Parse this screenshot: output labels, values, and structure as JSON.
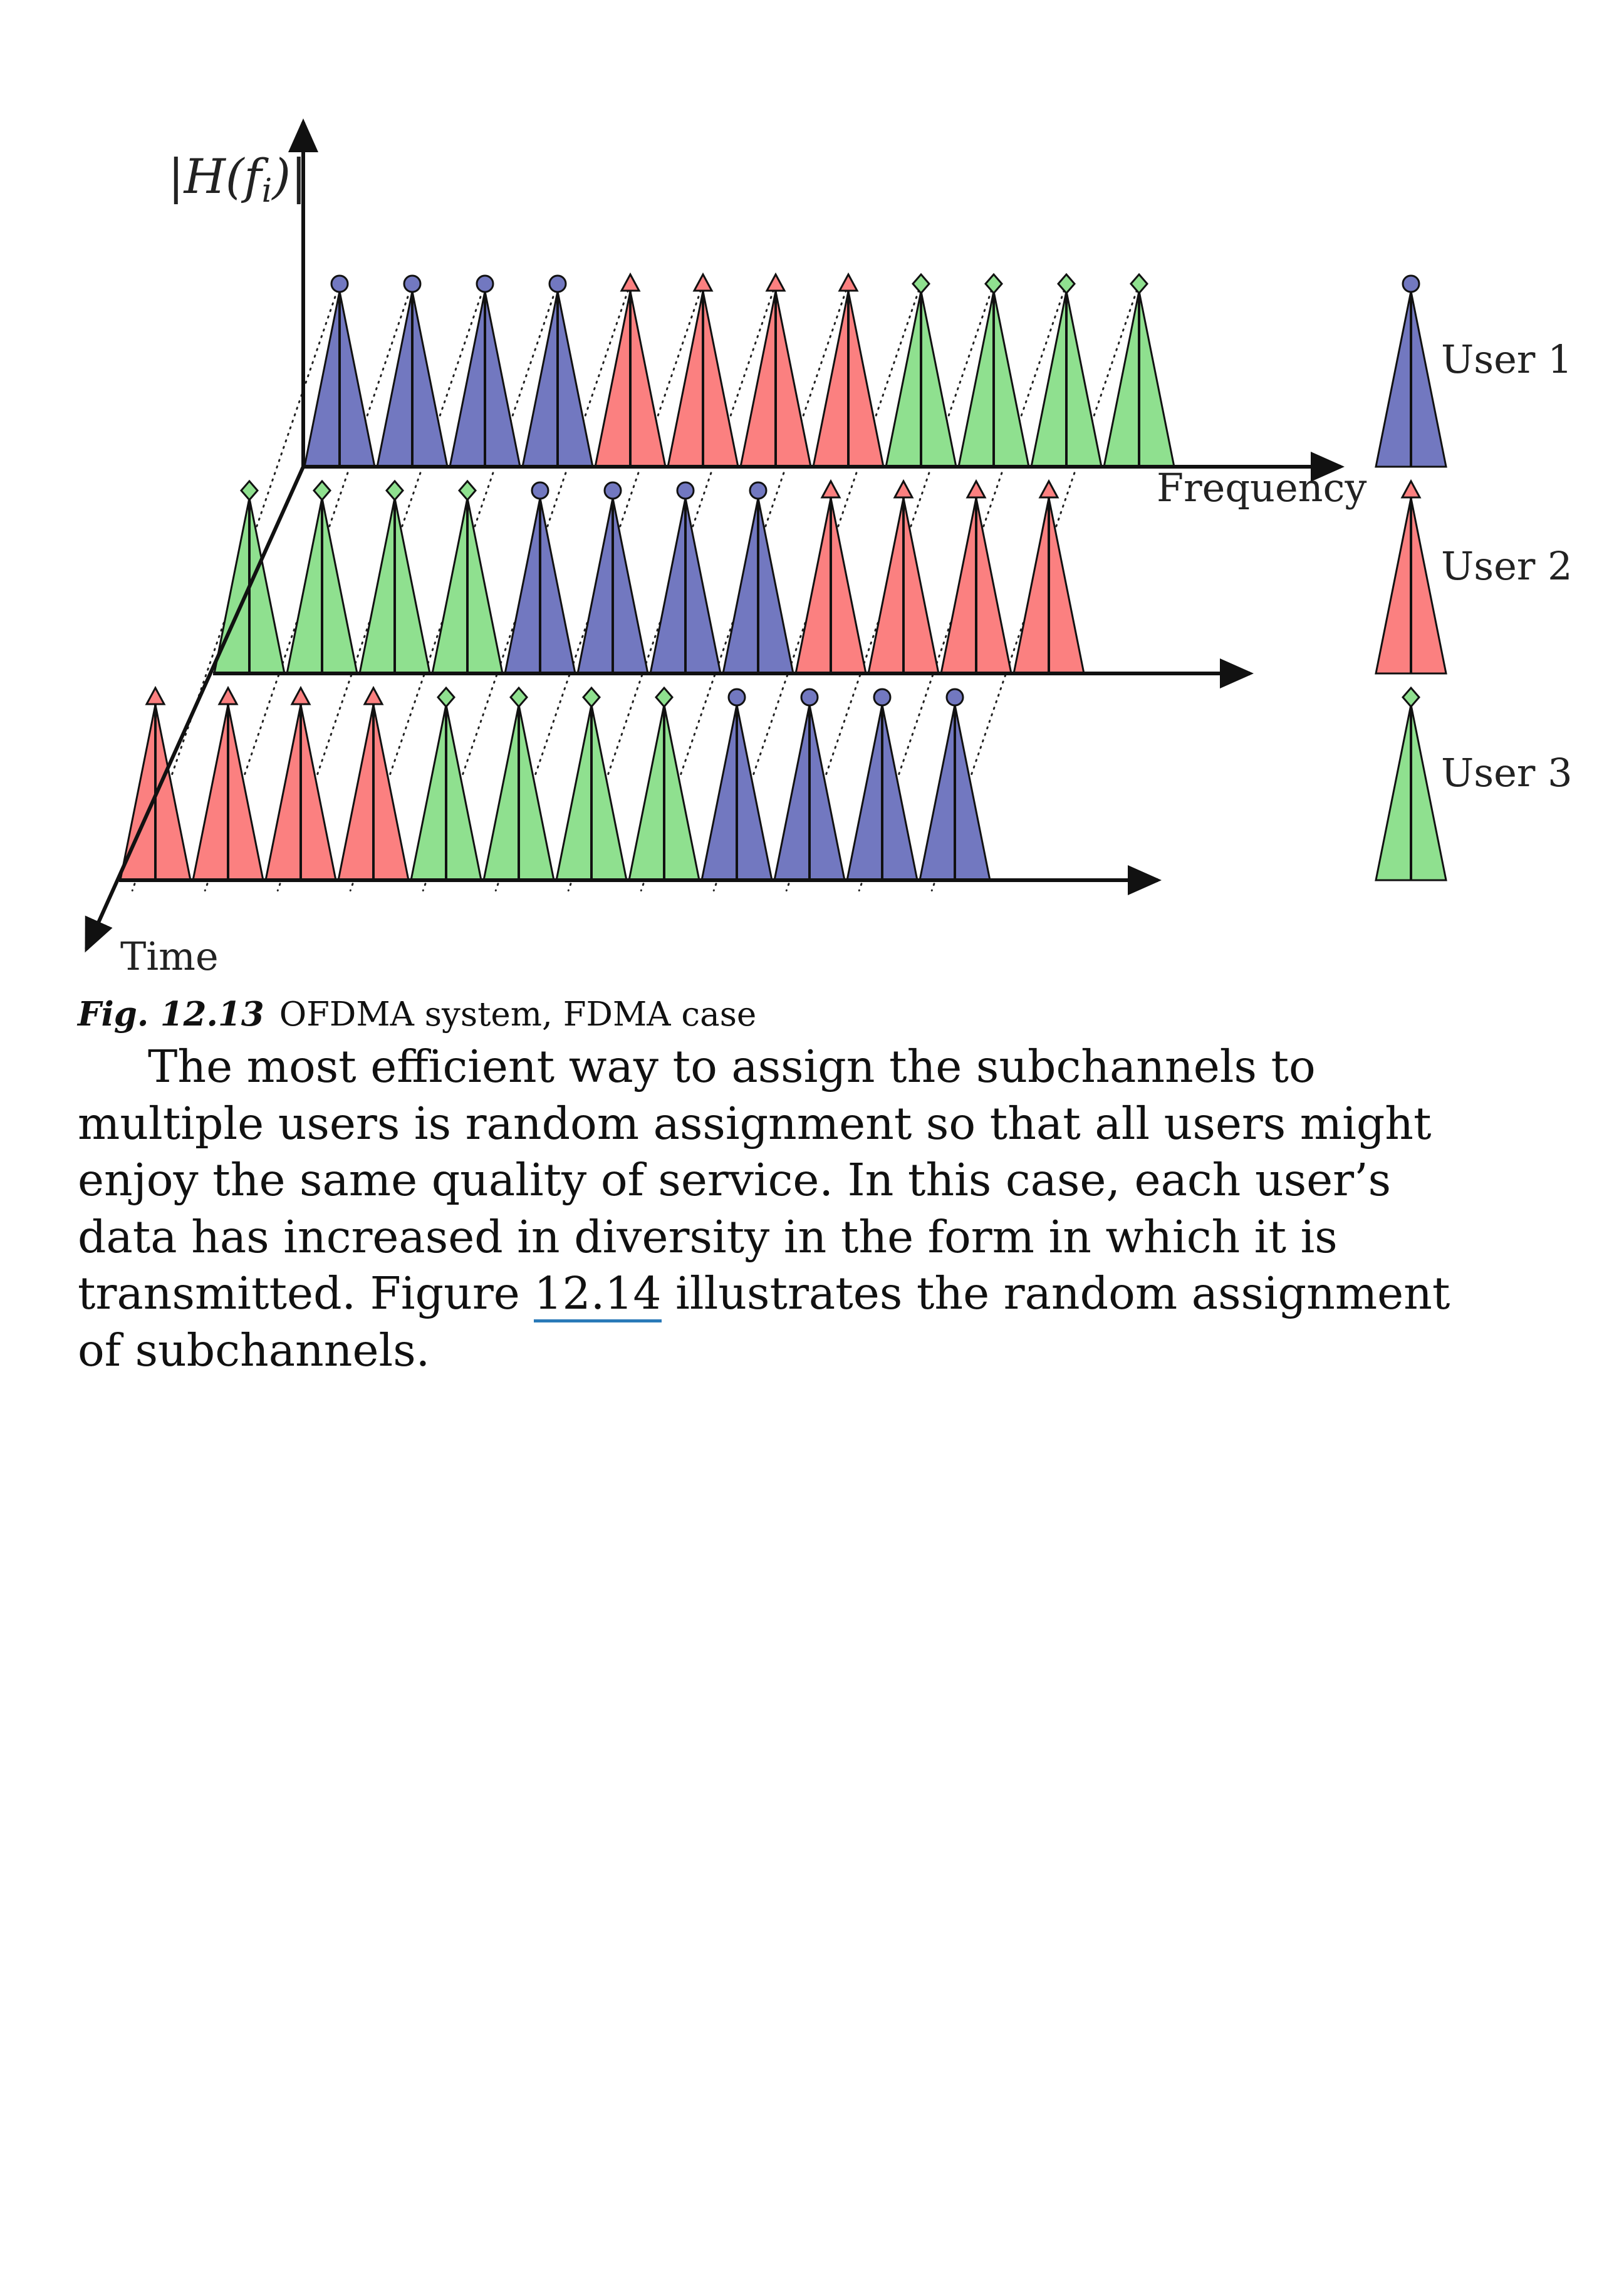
{
  "figure": {
    "y_axis_label": "|H(f",
    "y_axis_subscript": "i",
    "y_axis_label_close": ")|",
    "x_axis_label": "Frequency",
    "depth_axis_label": "Time",
    "legend": [
      {
        "label": "User 1",
        "color": "#7278c0",
        "marker": "circle"
      },
      {
        "label": "User 2",
        "color": "#fb8080",
        "marker": "triangle"
      },
      {
        "label": "User 3",
        "color": "#8fe08f",
        "marker": "diamond"
      }
    ],
    "rows": [
      [
        1,
        1,
        1,
        1,
        2,
        2,
        2,
        2,
        3,
        3,
        3,
        3
      ],
      [
        3,
        3,
        3,
        3,
        1,
        1,
        1,
        1,
        2,
        2,
        2,
        2
      ],
      [
        2,
        2,
        2,
        2,
        3,
        3,
        3,
        3,
        1,
        1,
        1,
        1
      ]
    ]
  },
  "caption": {
    "number": "Fig. 12.13",
    "text": "OFDMA system, FDMA case"
  },
  "paragraph": {
    "line1": "The most efficient way to assign the subchannels to",
    "line2": "multiple users is random assignment so that all users might",
    "line3": "enjoy the same quality of service. In this case, each user’s",
    "line4": "data has increased in diversity in the form in which it is",
    "line5_before": "transmitted. Figure ",
    "line5_link": "12.14",
    "line5_after": " illustrates the random assignment",
    "line6": "of subchannels."
  }
}
